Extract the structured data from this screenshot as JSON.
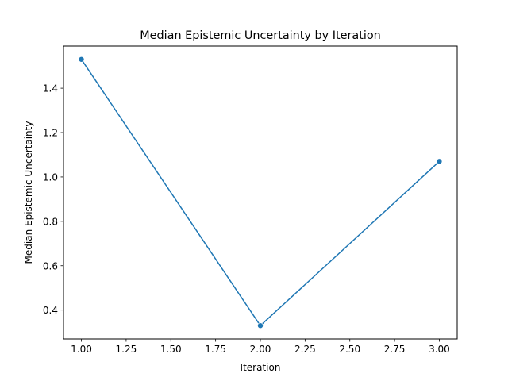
{
  "chart_data": {
    "type": "line",
    "title": "Median Epistemic Uncertainty by Iteration",
    "xlabel": "Iteration",
    "ylabel": "Median Epistemic Uncertainty",
    "x": [
      1.0,
      2.0,
      3.0
    ],
    "series": [
      {
        "values": [
          1.53,
          0.33,
          1.07
        ],
        "color": "#1f77b4",
        "marker": "circle"
      }
    ],
    "xlim": [
      0.9,
      3.1
    ],
    "ylim": [
      0.27,
      1.59
    ],
    "xticks": [
      1.0,
      1.25,
      1.5,
      1.75,
      2.0,
      2.25,
      2.5,
      2.75,
      3.0
    ],
    "xtick_labels": [
      "1.00",
      "1.25",
      "1.50",
      "1.75",
      "2.00",
      "2.25",
      "2.50",
      "2.75",
      "3.00"
    ],
    "yticks": [
      0.4,
      0.6,
      0.8,
      1.0,
      1.2,
      1.4
    ],
    "ytick_labels": [
      "0.4",
      "0.6",
      "0.8",
      "1.0",
      "1.2",
      "1.4"
    ],
    "grid": false,
    "legend": "none"
  }
}
